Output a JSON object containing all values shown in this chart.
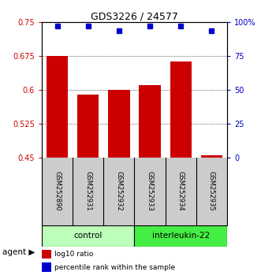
{
  "title": "GDS3226 / 24577",
  "samples": [
    "GSM252890",
    "GSM252931",
    "GSM252932",
    "GSM252933",
    "GSM252934",
    "GSM252935"
  ],
  "log10_values": [
    0.675,
    0.59,
    0.6,
    0.61,
    0.663,
    0.455
  ],
  "percentile_values": [
    97,
    97,
    94,
    97,
    97,
    94
  ],
  "ylim_left": [
    0.45,
    0.75
  ],
  "ylim_right": [
    0,
    100
  ],
  "yticks_left": [
    0.45,
    0.525,
    0.6,
    0.675,
    0.75
  ],
  "yticks_right": [
    0,
    25,
    50,
    75,
    100
  ],
  "ytick_labels_left": [
    "0.45",
    "0.525",
    "0.6",
    "0.675",
    "0.75"
  ],
  "ytick_labels_right": [
    "0",
    "25",
    "50",
    "75",
    "100%"
  ],
  "bar_color": "#cc0000",
  "dot_color": "#0000cc",
  "bar_bottom": 0.45,
  "agent_labels": [
    "control",
    "interleukin-22"
  ],
  "agent_label": "agent",
  "legend_log10": "log10 ratio",
  "legend_percentile": "percentile rank within the sample",
  "bg_color": "#ffffff",
  "sample_box_color": "#cccccc",
  "control_box_color": "#bbffbb",
  "interleukin_box_color": "#44ee44",
  "n_control": 3,
  "n_samples": 6
}
